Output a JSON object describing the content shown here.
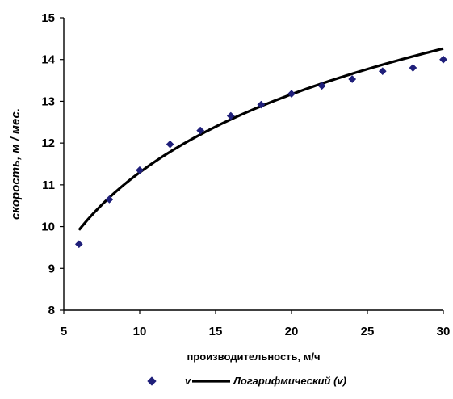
{
  "chart_data": {
    "type": "scatter",
    "title": "",
    "xlabel": "производительность, м/ч",
    "ylabel": "скорость, м / мес.",
    "xlim": [
      5,
      30
    ],
    "ylim": [
      8,
      15
    ],
    "x_ticks": [
      5,
      10,
      15,
      20,
      25,
      30
    ],
    "y_ticks": [
      8,
      9,
      10,
      11,
      12,
      13,
      14,
      15
    ],
    "x_tick_labels": [
      "5",
      "10",
      "15",
      "20",
      "25",
      "30"
    ],
    "y_tick_labels": [
      "8",
      "9",
      "10",
      "11",
      "12",
      "13",
      "14",
      "15"
    ],
    "grid": false,
    "legend_position": "bottom",
    "series": [
      {
        "name": "v",
        "kind": "markers",
        "marker": "diamond",
        "color": "#1f1f7a",
        "x": [
          6,
          8,
          10,
          12,
          14,
          16,
          18,
          20,
          22,
          24,
          26,
          28,
          30
        ],
        "y": [
          9.58,
          10.65,
          11.35,
          11.97,
          12.3,
          12.65,
          12.92,
          13.18,
          13.37,
          13.53,
          13.72,
          13.8,
          14.0
        ]
      },
      {
        "name": "Логарифмический (v)",
        "kind": "trendline",
        "fit": "logarithmic",
        "color": "#000000",
        "x": [
          6,
          8,
          10,
          12,
          14,
          16,
          18,
          20,
          22,
          24,
          26,
          28,
          30
        ],
        "y": [
          9.92,
          10.7,
          11.3,
          11.79,
          12.2,
          12.56,
          12.88,
          13.16,
          13.42,
          13.66,
          13.88,
          14.08,
          14.27
        ]
      }
    ]
  }
}
